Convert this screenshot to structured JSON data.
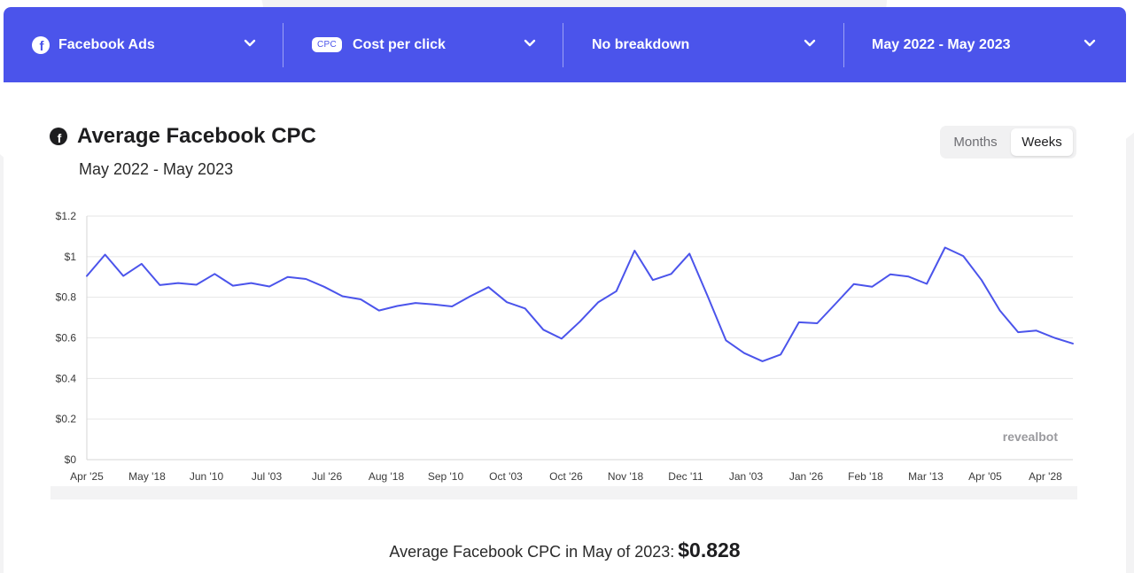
{
  "toolbar": {
    "source_label": "Facebook Ads",
    "metric_badge": "CPC",
    "metric_label": "Cost per click",
    "breakdown_label": "No breakdown",
    "range_label": "May 2022 - May 2023"
  },
  "header": {
    "title": "Average Facebook CPC",
    "subtitle": "May 2022 - May 2023"
  },
  "granularity": {
    "options": [
      "Months",
      "Weeks"
    ],
    "selected": "Weeks"
  },
  "watermark": "revealbot",
  "footer": {
    "text": "Average Facebook CPC in May of 2023:",
    "value": "$0.828"
  },
  "colors": {
    "accent": "#4b54eb",
    "line": "#4b54eb",
    "grid": "#e6e6e6"
  },
  "chart_data": {
    "type": "line",
    "y_tick_labels": [
      "$0",
      "$0.2",
      "$0.4",
      "$0.6",
      "$0.8",
      "$1",
      "$1.2"
    ],
    "ylim": [
      0,
      1.2
    ],
    "x_tick_labels": [
      "Apr '25",
      "May '18",
      "Jun '10",
      "Jul '03",
      "Jul '26",
      "Aug '18",
      "Sep '10",
      "Oct '03",
      "Oct '26",
      "Nov '18",
      "Dec '11",
      "Jan '03",
      "Jan '26",
      "Feb '18",
      "Mar '13",
      "Apr '05",
      "Apr '28"
    ],
    "grid": true,
    "legend": "none",
    "series": [
      {
        "values": [
          0.905,
          1.01,
          0.905,
          0.965,
          0.86,
          0.87,
          0.862,
          0.915,
          0.857,
          0.87,
          0.853,
          0.9,
          0.89,
          0.852,
          0.805,
          0.79,
          0.735,
          0.757,
          0.772,
          0.765,
          0.755,
          0.805,
          0.85,
          0.776,
          0.745,
          0.64,
          0.596,
          0.68,
          0.775,
          0.83,
          1.03,
          0.885,
          0.915,
          1.015,
          0.805,
          0.588,
          0.525,
          0.485,
          0.518,
          0.677,
          0.672,
          0.768,
          0.865,
          0.852,
          0.913,
          0.902,
          0.866,
          1.045,
          1.003,
          0.885,
          0.735,
          0.628,
          0.636,
          0.6,
          0.572
        ]
      }
    ]
  }
}
